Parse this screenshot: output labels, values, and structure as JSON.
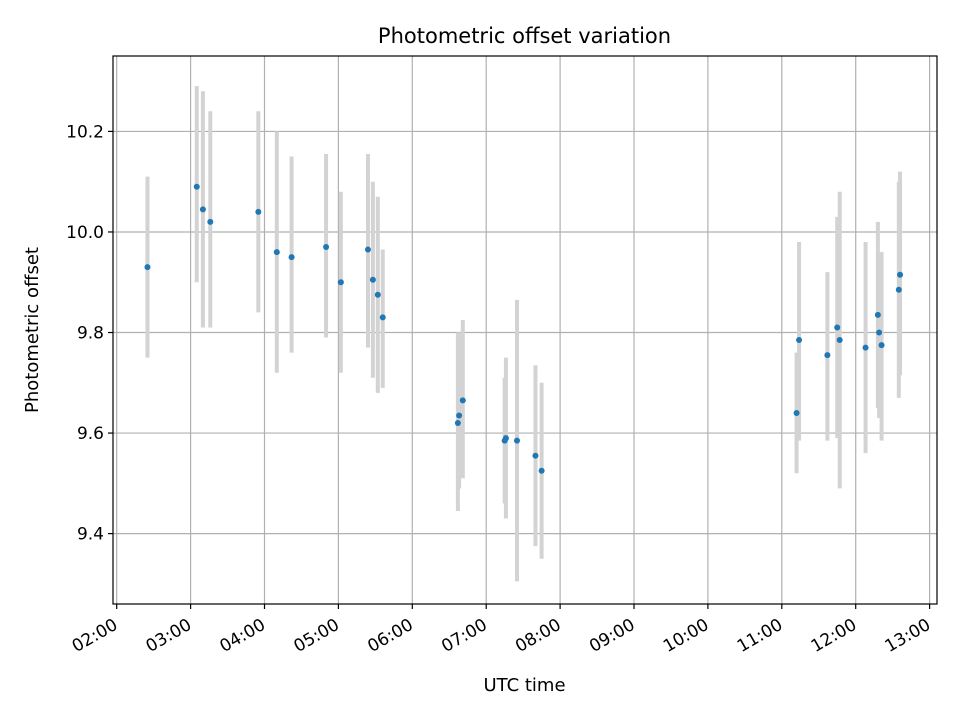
{
  "chart_data": {
    "type": "scatter",
    "title": "Photometric offset variation",
    "xlabel": "UTC time",
    "ylabel": "Photometric offset",
    "x_tick_labels": [
      "02:00",
      "03:00",
      "04:00",
      "05:00",
      "06:00",
      "07:00",
      "08:00",
      "09:00",
      "10:00",
      "11:00",
      "12:00",
      "13:00"
    ],
    "y_tick_labels": [
      "9.4",
      "9.6",
      "9.8",
      "10.0",
      "10.2"
    ],
    "xlim": [
      "01:57",
      "13:06"
    ],
    "ylim": [
      9.26,
      10.35
    ],
    "grid": true,
    "colors": {
      "point": "#1f77b4",
      "errorbar": "#d3d3d3",
      "grid": "#b0b0b0"
    },
    "points": [
      {
        "x": "02:25",
        "y": 9.93,
        "err_low": 9.75,
        "err_high": 10.11
      },
      {
        "x": "03:05",
        "y": 10.09,
        "err_low": 9.9,
        "err_high": 10.29
      },
      {
        "x": "03:10",
        "y": 10.045,
        "err_low": 9.81,
        "err_high": 10.28
      },
      {
        "x": "03:16",
        "y": 10.02,
        "err_low": 9.81,
        "err_high": 10.24
      },
      {
        "x": "03:55",
        "y": 10.04,
        "err_low": 9.84,
        "err_high": 10.24
      },
      {
        "x": "04:10",
        "y": 9.96,
        "err_low": 9.72,
        "err_high": 10.2
      },
      {
        "x": "04:22",
        "y": 9.95,
        "err_low": 9.76,
        "err_high": 10.15
      },
      {
        "x": "04:50",
        "y": 9.97,
        "err_low": 9.79,
        "err_high": 10.155
      },
      {
        "x": "05:02",
        "y": 9.9,
        "err_low": 9.72,
        "err_high": 10.08
      },
      {
        "x": "05:24",
        "y": 9.965,
        "err_low": 9.77,
        "err_high": 10.155
      },
      {
        "x": "05:28",
        "y": 9.905,
        "err_low": 9.71,
        "err_high": 10.1
      },
      {
        "x": "05:32",
        "y": 9.875,
        "err_low": 9.68,
        "err_high": 10.07
      },
      {
        "x": "05:36",
        "y": 9.83,
        "err_low": 9.69,
        "err_high": 9.965
      },
      {
        "x": "06:37",
        "y": 9.62,
        "err_low": 9.445,
        "err_high": 9.8
      },
      {
        "x": "06:38",
        "y": 9.635,
        "err_low": 9.49,
        "err_high": 9.8
      },
      {
        "x": "06:41",
        "y": 9.665,
        "err_low": 9.51,
        "err_high": 9.825
      },
      {
        "x": "07:15",
        "y": 9.585,
        "err_low": 9.46,
        "err_high": 9.71
      },
      {
        "x": "07:16",
        "y": 9.59,
        "err_low": 9.43,
        "err_high": 9.75
      },
      {
        "x": "07:25",
        "y": 9.585,
        "err_low": 9.305,
        "err_high": 9.865
      },
      {
        "x": "07:40",
        "y": 9.555,
        "err_low": 9.375,
        "err_high": 9.735
      },
      {
        "x": "07:45",
        "y": 9.525,
        "err_low": 9.35,
        "err_high": 9.7
      },
      {
        "x": "11:12",
        "y": 9.64,
        "err_low": 9.52,
        "err_high": 9.76
      },
      {
        "x": "11:14",
        "y": 9.785,
        "err_low": 9.585,
        "err_high": 9.98
      },
      {
        "x": "11:37",
        "y": 9.755,
        "err_low": 9.585,
        "err_high": 9.92
      },
      {
        "x": "11:45",
        "y": 9.81,
        "err_low": 9.59,
        "err_high": 10.03
      },
      {
        "x": "11:47",
        "y": 9.785,
        "err_low": 9.49,
        "err_high": 10.08
      },
      {
        "x": "12:08",
        "y": 9.77,
        "err_low": 9.56,
        "err_high": 9.98
      },
      {
        "x": "12:18",
        "y": 9.835,
        "err_low": 9.65,
        "err_high": 10.02
      },
      {
        "x": "12:19",
        "y": 9.8,
        "err_low": 9.63,
        "err_high": 9.96
      },
      {
        "x": "12:21",
        "y": 9.775,
        "err_low": 9.585,
        "err_high": 9.96
      },
      {
        "x": "12:35",
        "y": 9.885,
        "err_low": 9.67,
        "err_high": 10.1
      },
      {
        "x": "12:36",
        "y": 9.915,
        "err_low": 9.715,
        "err_high": 10.12
      }
    ]
  }
}
